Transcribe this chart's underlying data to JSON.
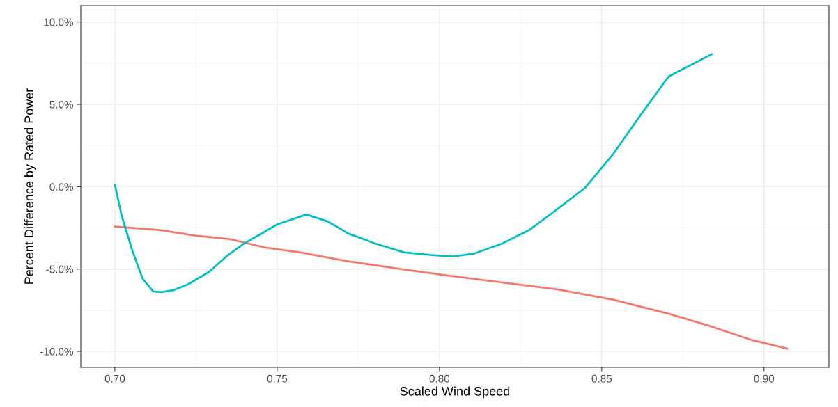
{
  "chart_data": {
    "type": "line",
    "xlabel": "Scaled Wind Speed",
    "ylabel": "Percent Difference by Rated Power",
    "xlim": [
      0.6895,
      0.92
    ],
    "xticks": [
      {
        "value": 0.7,
        "label": "0.70"
      },
      {
        "value": 0.75,
        "label": "0.75"
      },
      {
        "value": 0.8,
        "label": "0.80"
      },
      {
        "value": 0.85,
        "label": "0.85"
      },
      {
        "value": 0.9,
        "label": "0.90"
      }
    ],
    "ylim": [
      -10.97,
      11.0
    ],
    "yticks": [
      {
        "value": -10,
        "label": "-10.0%"
      },
      {
        "value": -5,
        "label": "-5.0%"
      },
      {
        "value": 0,
        "label": "0.0%"
      },
      {
        "value": 5,
        "label": "5.0%"
      },
      {
        "value": 10,
        "label": "10.0%"
      }
    ],
    "grid": true,
    "legend": false,
    "series": [
      {
        "color": "#f8766d",
        "x": [
          0.7,
          0.7139,
          0.7247,
          0.7354,
          0.7461,
          0.7569,
          0.7719,
          0.7869,
          0.8019,
          0.8191,
          0.8363,
          0.8534,
          0.8706,
          0.8835,
          0.8964,
          0.9071
        ],
        "values": [
          -2.42,
          -2.63,
          -2.97,
          -3.18,
          -3.69,
          -3.98,
          -4.53,
          -4.96,
          -5.38,
          -5.81,
          -6.23,
          -6.86,
          -7.71,
          -8.47,
          -9.32,
          -9.83
        ]
      },
      {
        "color": "#00bfc4",
        "x": [
          0.7,
          0.7021,
          0.7054,
          0.7086,
          0.7118,
          0.7144,
          0.7182,
          0.7225,
          0.729,
          0.7343,
          0.7397,
          0.75,
          0.759,
          0.7655,
          0.7719,
          0.7805,
          0.789,
          0.7976,
          0.8041,
          0.8105,
          0.8191,
          0.8277,
          0.8363,
          0.8448,
          0.8534,
          0.862,
          0.8706,
          0.8839
        ],
        "values": [
          0.13,
          -1.78,
          -3.9,
          -5.6,
          -6.36,
          -6.4,
          -6.27,
          -5.93,
          -5.17,
          -4.24,
          -3.47,
          -2.29,
          -1.69,
          -2.1,
          -2.84,
          -3.47,
          -3.98,
          -4.15,
          -4.24,
          -4.07,
          -3.47,
          -2.63,
          -1.36,
          -0.08,
          1.95,
          4.36,
          6.69,
          8.05
        ]
      }
    ]
  }
}
